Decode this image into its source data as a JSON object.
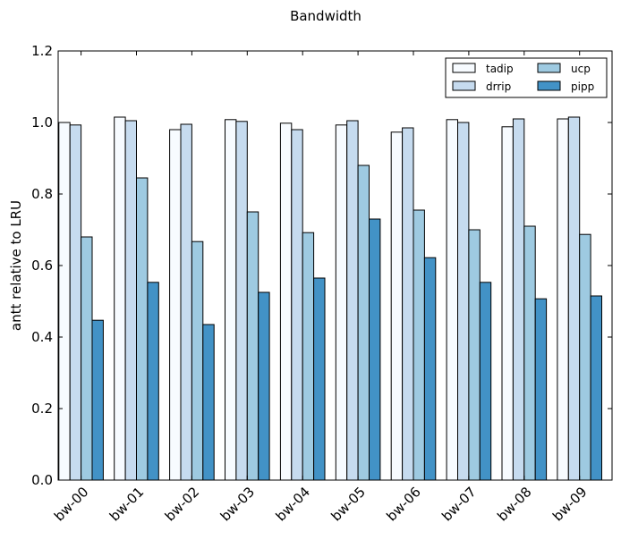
{
  "chart_data": {
    "type": "bar",
    "title": "Bandwidth",
    "xlabel": "",
    "ylabel": "antt relative to LRU",
    "categories": [
      "bw-00",
      "bw-01",
      "bw-02",
      "bw-03",
      "bw-04",
      "bw-05",
      "bw-06",
      "bw-07",
      "bw-08",
      "bw-09"
    ],
    "series": [
      {
        "name": "tadip",
        "color": "#f7fbff",
        "values": [
          1.0,
          1.015,
          0.98,
          1.008,
          0.998,
          0.993,
          0.973,
          1.008,
          0.988,
          1.01
        ]
      },
      {
        "name": "drrip",
        "color": "#c6dbef",
        "values": [
          0.993,
          1.005,
          0.995,
          1.003,
          0.98,
          1.005,
          0.985,
          1.0,
          1.01,
          1.015
        ]
      },
      {
        "name": "ucp",
        "color": "#9ecae1",
        "values": [
          0.68,
          0.845,
          0.667,
          0.75,
          0.692,
          0.88,
          0.755,
          0.7,
          0.71,
          0.687
        ]
      },
      {
        "name": "pipp",
        "color": "#4292c6",
        "values": [
          0.447,
          0.553,
          0.435,
          0.525,
          0.565,
          0.73,
          0.622,
          0.553,
          0.507,
          0.515
        ]
      }
    ],
    "ylim": [
      0.0,
      1.2
    ],
    "yticks": [
      "0.0",
      "0.2",
      "0.4",
      "0.6",
      "0.8",
      "1.0",
      "1.2"
    ],
    "grid": false,
    "legend_position": "top-right",
    "legend_columns": 2
  }
}
